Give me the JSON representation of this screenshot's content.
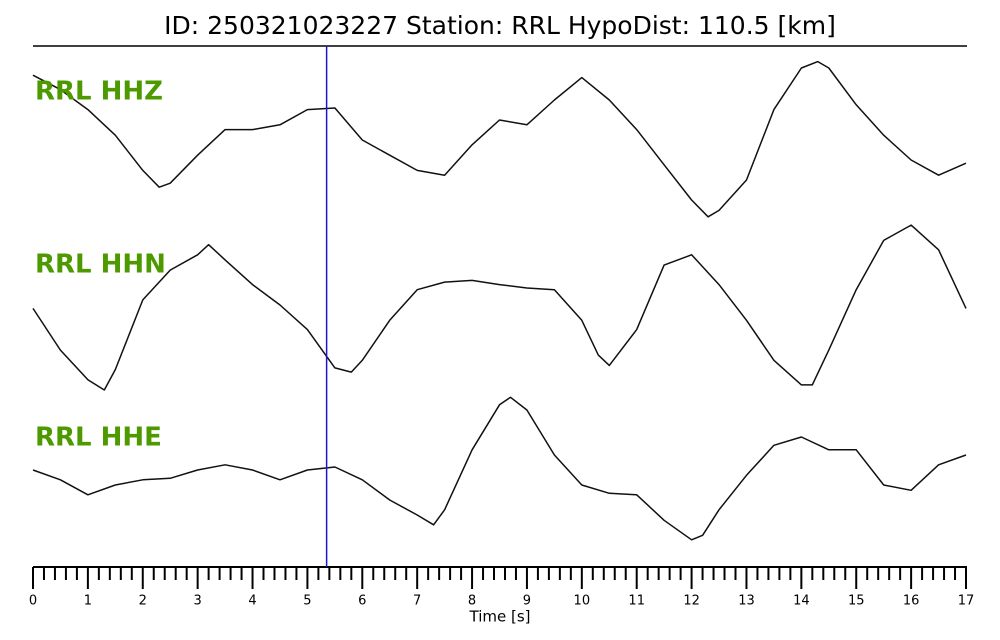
{
  "chart_data": {
    "type": "line",
    "title": "ID: 250321023227   Station: RRL   HypoDist:   110.5 [km]",
    "xlabel": "Time [s]",
    "xlim": [
      0,
      17
    ],
    "xticks": [
      0,
      1,
      2,
      3,
      4,
      5,
      6,
      7,
      8,
      9,
      10,
      11,
      12,
      13,
      14,
      15,
      16,
      17
    ],
    "minor_per_major": 5,
    "ylim": [
      -1,
      1
    ],
    "label_color": "#4c9a00",
    "pick": {
      "x": 5.35,
      "color": "#1a1acc"
    },
    "series": [
      {
        "name": "RRL HHZ",
        "color": "#111111",
        "x": [
          0,
          0.5,
          1,
          1.5,
          2,
          2.3,
          2.5,
          3,
          3.5,
          4,
          4.5,
          5,
          5.5,
          6,
          6.5,
          7,
          7.5,
          8,
          8.5,
          9,
          9.5,
          10,
          10.5,
          11,
          11.5,
          12,
          12.3,
          12.5,
          13,
          13.5,
          14,
          14.3,
          14.5,
          15,
          15.5,
          16,
          16.5,
          17
        ],
        "values": [
          0.81,
          0.63,
          0.38,
          0.06,
          -0.38,
          -0.59,
          -0.54,
          -0.19,
          0.13,
          0.13,
          0.19,
          0.38,
          0.4,
          0,
          -0.19,
          -0.38,
          -0.44,
          -0.06,
          0.25,
          0.19,
          0.5,
          0.78,
          0.5,
          0.13,
          -0.31,
          -0.75,
          -0.96,
          -0.88,
          -0.5,
          0.38,
          0.9,
          0.98,
          0.9,
          0.44,
          0.06,
          -0.25,
          -0.44,
          -0.29
        ]
      },
      {
        "name": "RRL HHN",
        "color": "#111111",
        "x": [
          0,
          0.5,
          1,
          1.3,
          1.5,
          2,
          2.5,
          3,
          3.2,
          3.5,
          4,
          4.5,
          5,
          5.5,
          5.8,
          6,
          6.5,
          7,
          7.5,
          8,
          8.5,
          9,
          9.5,
          10,
          10.3,
          10.5,
          11,
          11.5,
          12,
          12.5,
          13,
          13.5,
          14,
          14.2,
          14.5,
          15,
          15.5,
          16,
          16.5,
          17
        ],
        "values": [
          -0.04,
          -0.53,
          -0.88,
          -1,
          -0.76,
          0.06,
          0.41,
          0.59,
          0.71,
          0.53,
          0.24,
          0,
          -0.29,
          -0.74,
          -0.79,
          -0.65,
          -0.18,
          0.18,
          0.27,
          0.29,
          0.24,
          0.2,
          0.18,
          -0.18,
          -0.59,
          -0.71,
          -0.29,
          0.47,
          0.59,
          0.24,
          -0.18,
          -0.65,
          -0.94,
          -0.94,
          -0.53,
          0.18,
          0.76,
          0.94,
          0.65,
          -0.04
        ]
      },
      {
        "name": "RRL HHE",
        "color": "#111111",
        "x": [
          0,
          0.5,
          1,
          1.5,
          2,
          2.5,
          3,
          3.5,
          4,
          4.5,
          5,
          5.5,
          6,
          6.5,
          7,
          7.3,
          7.5,
          8,
          8.5,
          8.7,
          9,
          9.5,
          10,
          10.5,
          11,
          11.5,
          12,
          12.2,
          12.5,
          13,
          13.5,
          14,
          14.5,
          15,
          15.5,
          16,
          16.5,
          17
        ],
        "values": [
          0,
          -0.13,
          -0.33,
          -0.2,
          -0.13,
          -0.11,
          0,
          0.07,
          0,
          -0.13,
          0,
          0.04,
          -0.13,
          -0.4,
          -0.6,
          -0.73,
          -0.53,
          0.27,
          0.87,
          0.97,
          0.8,
          0.2,
          -0.2,
          -0.31,
          -0.33,
          -0.67,
          -0.93,
          -0.87,
          -0.53,
          -0.07,
          0.33,
          0.44,
          0.27,
          0.27,
          -0.2,
          -0.27,
          0.07,
          0.2
        ]
      }
    ]
  }
}
